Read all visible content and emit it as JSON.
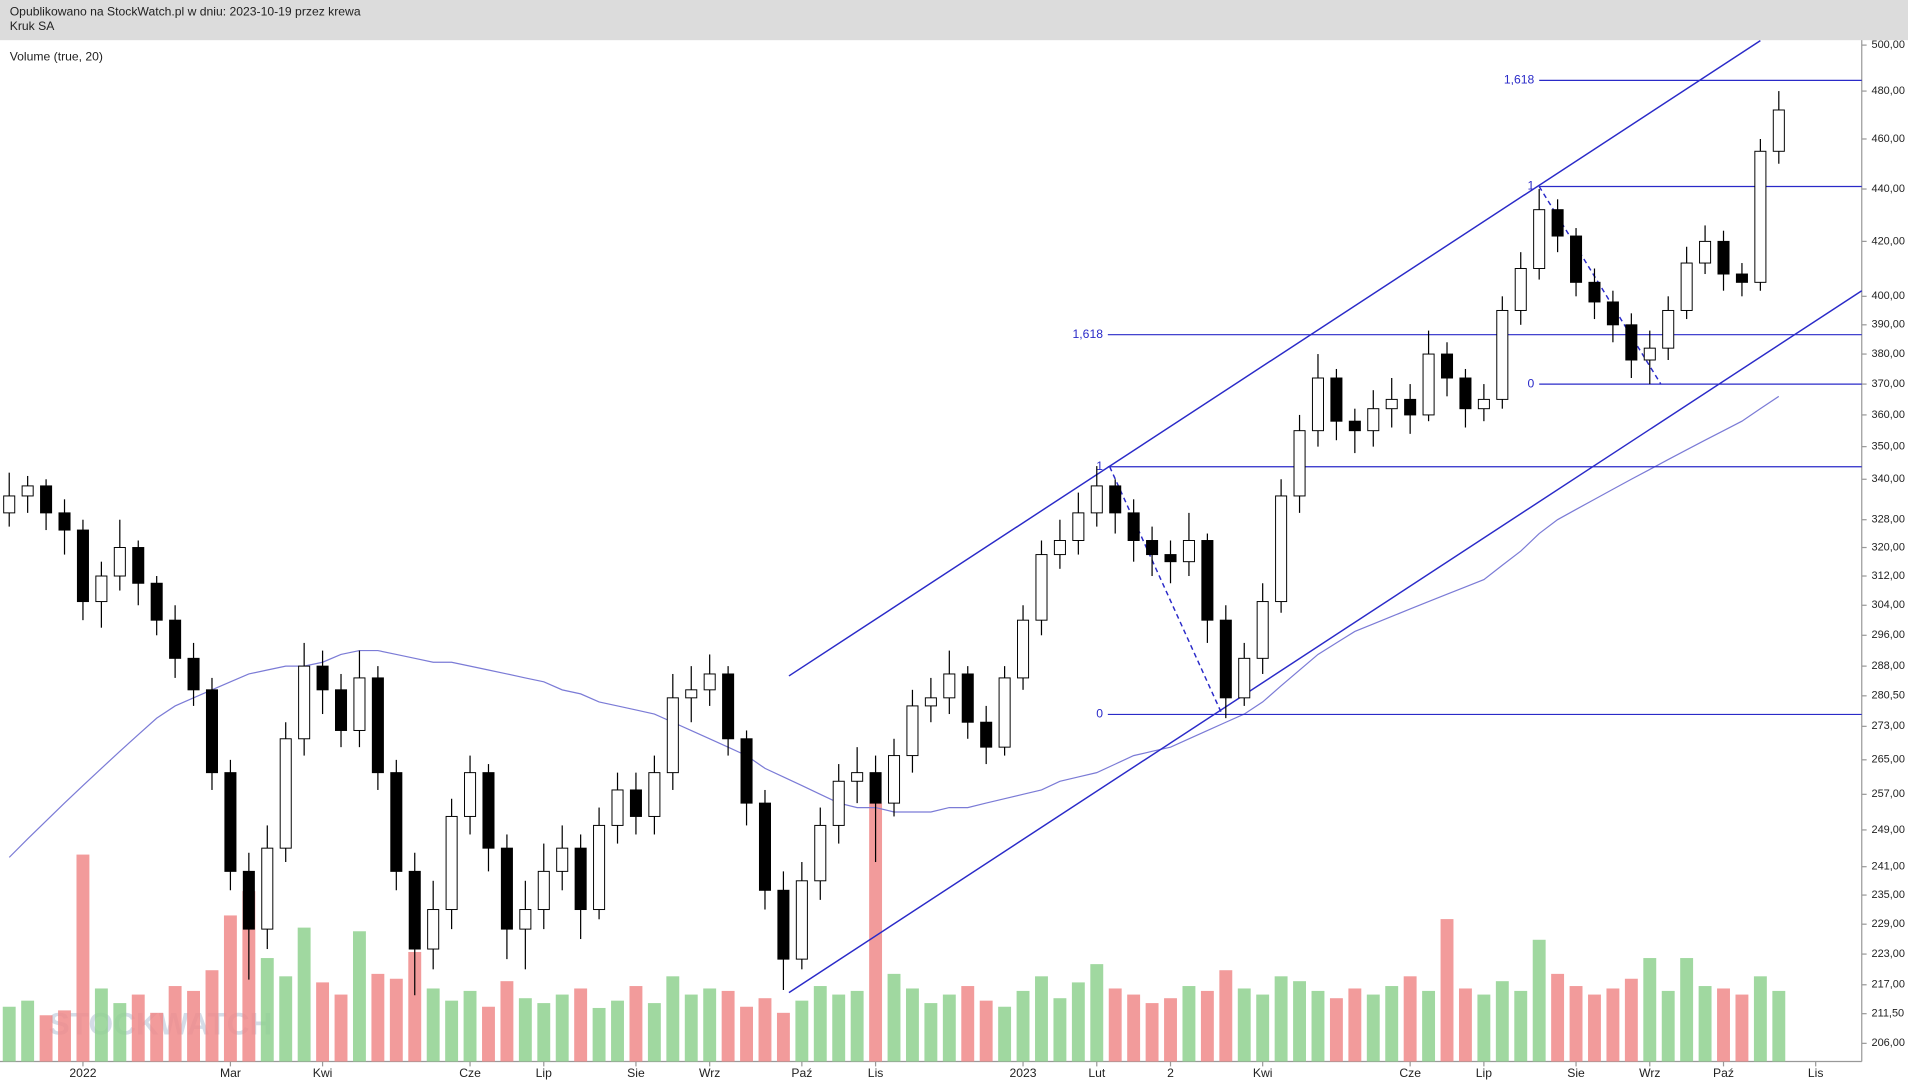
{
  "header": {
    "line1": "Opublikowano na StockWatch.pl w dniu: 2023-10-19 przez krewa",
    "line2": "Kruk SA"
  },
  "chart_data": {
    "type": "candlestick",
    "indicator_label": "Volume (true, 20)",
    "watermark": "STOCKWATCH",
    "categories": [
      null,
      null,
      null,
      null,
      "2022",
      null,
      null,
      null,
      null,
      null,
      null,
      null,
      "Mar",
      null,
      null,
      null,
      null,
      "Kwi",
      null,
      null,
      null,
      null,
      null,
      null,
      null,
      "Cze",
      null,
      null,
      null,
      "Lip",
      null,
      null,
      null,
      null,
      "Sie",
      null,
      null,
      null,
      "Wrz",
      null,
      null,
      null,
      null,
      "Paź",
      null,
      null,
      null,
      "Lis",
      null,
      null,
      null,
      null,
      null,
      null,
      null,
      "2023",
      null,
      null,
      null,
      "Lut",
      null,
      null,
      null,
      "2",
      null,
      null,
      null,
      null,
      "Kwi",
      null,
      null,
      null,
      null,
      null,
      null,
      null,
      "Cze",
      null,
      null,
      null,
      "Lip",
      null,
      null,
      null,
      null,
      "Sie",
      null,
      null,
      null,
      "Wrz",
      null,
      null,
      null,
      "Paź",
      null,
      null,
      null,
      null,
      "Lis",
      null,
      null
    ],
    "open": [
      330,
      335,
      338,
      330,
      325,
      305,
      312,
      320,
      310,
      300,
      290,
      282,
      262,
      240,
      228,
      245,
      270,
      288,
      282,
      272,
      285,
      262,
      240,
      224,
      232,
      252,
      262,
      245,
      228,
      232,
      240,
      245,
      232,
      250,
      258,
      252,
      262,
      280,
      282,
      286,
      270,
      255,
      236,
      222,
      238,
      250,
      260,
      262,
      255,
      266,
      278,
      280,
      286,
      274,
      268,
      285,
      300,
      318,
      322,
      330,
      338,
      330,
      322,
      318,
      316,
      322,
      300,
      280,
      290,
      305,
      335,
      355,
      372,
      358,
      355,
      362,
      365,
      360,
      380,
      372,
      362,
      365,
      395,
      410,
      432,
      422,
      405,
      398,
      390,
      378,
      382,
      395,
      412,
      420,
      408,
      405,
      455,
      null,
      null,
      null,
      null
    ],
    "high": [
      342,
      341,
      340,
      334,
      328,
      316,
      328,
      322,
      312,
      304,
      294,
      285,
      265,
      244,
      250,
      274,
      294,
      292,
      286,
      292,
      288,
      265,
      244,
      238,
      256,
      266,
      264,
      248,
      238,
      246,
      250,
      248,
      254,
      262,
      262,
      266,
      286,
      288,
      291,
      288,
      272,
      258,
      240,
      242,
      254,
      264,
      268,
      266,
      270,
      282,
      285,
      292,
      288,
      278,
      288,
      304,
      322,
      328,
      336,
      344,
      340,
      334,
      326,
      322,
      330,
      324,
      304,
      294,
      310,
      340,
      360,
      380,
      375,
      362,
      368,
      372,
      370,
      388,
      384,
      375,
      370,
      400,
      416,
      440,
      436,
      425,
      410,
      402,
      394,
      388,
      400,
      418,
      426,
      424,
      412,
      460,
      480,
      null,
      null,
      null,
      null
    ],
    "low": [
      326,
      330,
      325,
      318,
      300,
      298,
      308,
      304,
      296,
      285,
      278,
      258,
      236,
      218,
      224,
      242,
      266,
      276,
      268,
      268,
      258,
      236,
      215,
      220,
      228,
      248,
      240,
      222,
      220,
      228,
      236,
      226,
      230,
      246,
      248,
      248,
      258,
      274,
      278,
      266,
      250,
      232,
      216,
      220,
      234,
      246,
      255,
      242,
      252,
      262,
      274,
      276,
      270,
      264,
      266,
      282,
      296,
      314,
      318,
      326,
      324,
      316,
      312,
      310,
      312,
      294,
      275,
      278,
      286,
      302,
      330,
      350,
      352,
      348,
      350,
      356,
      354,
      358,
      366,
      356,
      358,
      362,
      390,
      406,
      416,
      400,
      392,
      384,
      372,
      370,
      378,
      392,
      408,
      402,
      400,
      402,
      450,
      null,
      null,
      null,
      null
    ],
    "close": [
      335,
      338,
      330,
      325,
      305,
      312,
      320,
      310,
      300,
      290,
      282,
      262,
      240,
      228,
      245,
      270,
      288,
      282,
      272,
      285,
      262,
      240,
      224,
      232,
      252,
      262,
      245,
      228,
      232,
      240,
      245,
      232,
      250,
      258,
      252,
      262,
      280,
      282,
      286,
      270,
      255,
      236,
      222,
      238,
      250,
      260,
      262,
      255,
      266,
      278,
      280,
      286,
      274,
      268,
      285,
      300,
      318,
      322,
      330,
      338,
      330,
      322,
      318,
      316,
      322,
      300,
      280,
      290,
      305,
      335,
      355,
      372,
      358,
      355,
      362,
      365,
      360,
      380,
      372,
      362,
      365,
      395,
      410,
      432,
      422,
      405,
      398,
      390,
      378,
      382,
      395,
      412,
      420,
      408,
      405,
      455,
      472,
      null,
      null,
      null,
      null
    ],
    "volume": [
      45,
      50,
      38,
      42,
      170,
      60,
      48,
      55,
      40,
      62,
      58,
      75,
      120,
      140,
      85,
      70,
      110,
      65,
      55,
      107,
      72,
      68,
      90,
      60,
      50,
      58,
      45,
      66,
      52,
      48,
      55,
      60,
      44,
      50,
      62,
      48,
      70,
      55,
      60,
      58,
      45,
      52,
      40,
      50,
      62,
      55,
      58,
      212,
      72,
      60,
      48,
      55,
      62,
      50,
      45,
      58,
      70,
      52,
      65,
      80,
      60,
      55,
      48,
      52,
      62,
      58,
      75,
      60,
      55,
      70,
      66,
      58,
      52,
      60,
      55,
      62,
      70,
      58,
      117,
      60,
      55,
      66,
      58,
      100,
      72,
      62,
      55,
      60,
      68,
      85,
      58,
      85,
      62,
      60,
      55,
      70,
      58,
      null,
      null,
      null,
      null
    ],
    "moving_average": {
      "color": "#7b7bd6",
      "values": [
        243,
        247,
        251,
        255,
        259,
        263,
        267,
        271,
        275,
        278,
        280,
        282,
        284,
        286,
        287,
        288,
        288,
        289,
        291,
        292,
        292,
        291,
        290,
        289,
        289,
        288,
        287,
        286,
        285,
        284,
        282,
        281,
        279,
        278,
        277,
        276,
        274,
        272,
        270,
        268,
        266,
        263,
        261,
        259,
        257,
        255,
        254,
        254,
        253,
        253,
        253,
        254,
        254,
        255,
        256,
        257,
        258,
        260,
        261,
        262,
        264,
        266,
        267,
        268,
        270,
        272,
        274,
        276,
        279,
        283,
        287,
        291,
        294,
        297,
        299,
        301,
        303,
        305,
        307,
        309,
        311,
        315,
        319,
        324,
        328,
        331,
        334,
        337,
        340,
        343,
        346,
        349,
        352,
        355,
        358,
        362,
        366,
        null,
        null,
        null,
        null
      ]
    },
    "ylim": [
      202.7,
      502.2
    ],
    "log_scale": true,
    "yticks": [
      {
        "value": 500,
        "label": "500,00"
      },
      {
        "value": 480,
        "label": "480,00"
      },
      {
        "value": 460,
        "label": "460,00"
      },
      {
        "value": 440,
        "label": "440,00"
      },
      {
        "value": 420,
        "label": "420,00"
      },
      {
        "value": 400,
        "label": "400,00"
      },
      {
        "value": 390,
        "label": "390,00"
      },
      {
        "value": 380,
        "label": "380,00"
      },
      {
        "value": 370,
        "label": "370,00"
      },
      {
        "value": 360,
        "label": "360,00"
      },
      {
        "value": 350,
        "label": "350,00"
      },
      {
        "value": 340,
        "label": "340,00"
      },
      {
        "value": 328,
        "label": "328,00"
      },
      {
        "value": 320,
        "label": "320,00"
      },
      {
        "value": 312,
        "label": "312,00"
      },
      {
        "value": 304,
        "label": "304,00"
      },
      {
        "value": 296,
        "label": "296,00"
      },
      {
        "value": 288,
        "label": "288,00"
      },
      {
        "value": 280.5,
        "label": "280,50"
      },
      {
        "value": 273,
        "label": "273,00"
      },
      {
        "value": 265,
        "label": "265,00"
      },
      {
        "value": 257,
        "label": "257,00"
      },
      {
        "value": 249,
        "label": "249,00"
      },
      {
        "value": 241,
        "label": "241,00"
      },
      {
        "value": 235,
        "label": "235,00"
      },
      {
        "value": 229,
        "label": "229,00"
      },
      {
        "value": 223,
        "label": "223,00"
      },
      {
        "value": 217,
        "label": "217,00"
      },
      {
        "value": 211.5,
        "label": "211,50"
      },
      {
        "value": 206,
        "label": "206,00"
      }
    ],
    "up_color": "#ffffff",
    "down_color": "#000000",
    "volume_up_color": "#8fd18f",
    "volume_down_color": "#f08a8a",
    "line_color": "#2a2ac8",
    "levels": [
      {
        "label": "1,618",
        "price": 484.6,
        "from": 83
      },
      {
        "label": "1",
        "price": 441,
        "from": 83
      },
      {
        "label": "0",
        "price": 370,
        "from": 83
      },
      {
        "label": "1,618",
        "price": 386.6,
        "from": 59.6
      },
      {
        "label": "1",
        "price": 343.8,
        "from": 59.6
      },
      {
        "label": "0",
        "price": 275.9,
        "from": 59.6
      }
    ],
    "trend_lines": [
      {
        "from": [
          42.3,
          285.5
        ],
        "to": [
          95,
          502
        ],
        "style": "solid"
      },
      {
        "from": [
          42.3,
          215.5
        ],
        "to": [
          100.5,
          402
        ],
        "style": "solid"
      },
      {
        "from": [
          59.7,
          343.8
        ],
        "to": [
          65.8,
          275.9
        ],
        "style": "dashed"
      },
      {
        "from": [
          83,
          441
        ],
        "to": [
          89.6,
          370
        ],
        "style": "dashed"
      }
    ]
  }
}
